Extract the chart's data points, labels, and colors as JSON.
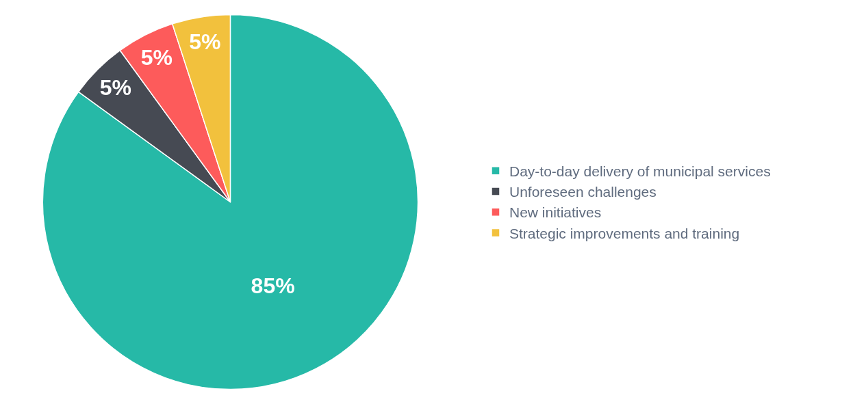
{
  "chart_data": {
    "type": "pie",
    "categories": [
      "Day-to-day delivery of municipal services",
      "Unforeseen challenges",
      "New initiatives",
      "Strategic improvements and training"
    ],
    "values": [
      85,
      5,
      5,
      5
    ],
    "colors": [
      "#26b9a7",
      "#464a53",
      "#fd5b5b",
      "#f2c13d"
    ],
    "value_labels": [
      "85%",
      "5%",
      "5%",
      "5%"
    ],
    "legend": "right"
  }
}
